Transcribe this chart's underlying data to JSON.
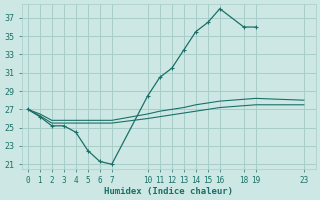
{
  "xlabel": "Humidex (Indice chaleur)",
  "bg_color": "#cde8e4",
  "grid_color": "#a8ceca",
  "line_color": "#1a7068",
  "xlim": [
    -0.5,
    24
  ],
  "ylim": [
    20.5,
    38.5
  ],
  "xticks": [
    0,
    1,
    2,
    3,
    4,
    5,
    6,
    7,
    10,
    11,
    12,
    13,
    14,
    15,
    16,
    18,
    19,
    23
  ],
  "yticks": [
    21,
    23,
    25,
    27,
    29,
    31,
    33,
    35,
    37
  ],
  "series_marked": [
    {
      "x": [
        0,
        1,
        2,
        3,
        4,
        5,
        6,
        7,
        10,
        11,
        12,
        13,
        14,
        15,
        16,
        18,
        19
      ],
      "y": [
        27,
        26.2,
        25.2,
        25.2,
        24.5,
        22.5,
        21.3,
        21.0,
        28.5,
        30.5,
        31.5,
        33.5,
        35.5,
        36.5,
        38.0,
        36.0,
        36.0
      ]
    }
  ],
  "series_flat": [
    {
      "x": [
        0,
        1,
        2,
        3,
        4,
        5,
        6,
        7,
        10,
        11,
        12,
        13,
        14,
        15,
        16,
        18,
        19,
        23
      ],
      "y": [
        27.0,
        26.5,
        25.8,
        25.8,
        25.8,
        25.8,
        25.8,
        25.8,
        26.5,
        26.8,
        27.0,
        27.2,
        27.5,
        27.7,
        27.9,
        28.1,
        28.2,
        28.0
      ]
    },
    {
      "x": [
        0,
        1,
        2,
        3,
        4,
        5,
        6,
        7,
        10,
        11,
        12,
        13,
        14,
        15,
        16,
        18,
        19,
        23
      ],
      "y": [
        27.0,
        26.3,
        25.5,
        25.5,
        25.5,
        25.5,
        25.5,
        25.5,
        26.0,
        26.2,
        26.4,
        26.6,
        26.8,
        27.0,
        27.2,
        27.4,
        27.5,
        27.5
      ]
    }
  ]
}
